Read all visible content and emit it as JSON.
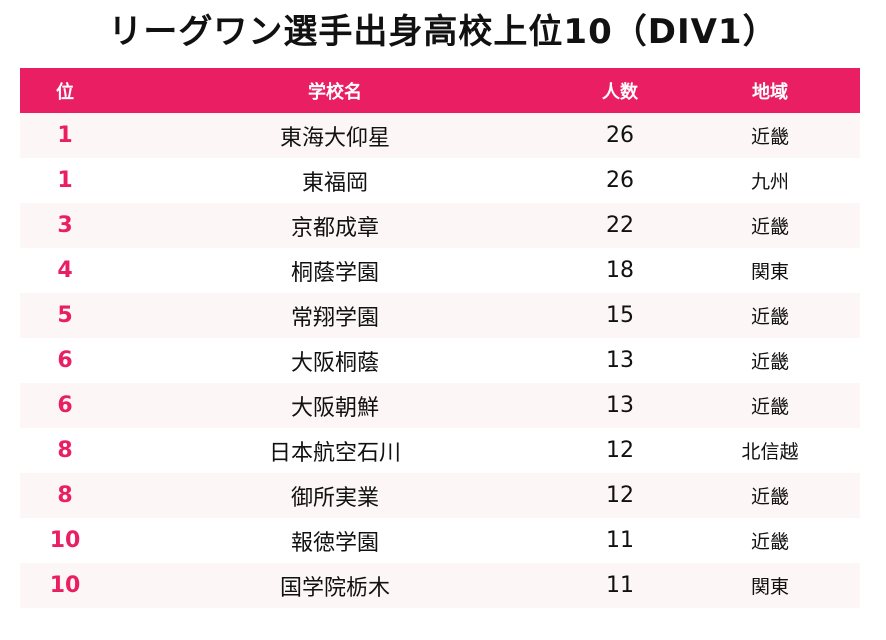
{
  "title": "リーグワン選手出身高校上位10（DIV1）",
  "colors": {
    "header_bg": "#e91e63",
    "rank_text": "#e91e63",
    "stripe": "#fdf6f7"
  },
  "table": {
    "headers": [
      "位",
      "学校名",
      "人数",
      "地域"
    ],
    "rows": [
      {
        "rank": "1",
        "school": "東海大仰星",
        "count": "26",
        "region": "近畿"
      },
      {
        "rank": "1",
        "school": "東福岡",
        "count": "26",
        "region": "九州"
      },
      {
        "rank": "3",
        "school": "京都成章",
        "count": "22",
        "region": "近畿"
      },
      {
        "rank": "4",
        "school": "桐蔭学園",
        "count": "18",
        "region": "関東"
      },
      {
        "rank": "5",
        "school": "常翔学園",
        "count": "15",
        "region": "近畿"
      },
      {
        "rank": "6",
        "school": "大阪桐蔭",
        "count": "13",
        "region": "近畿"
      },
      {
        "rank": "6",
        "school": "大阪朝鮮",
        "count": "13",
        "region": "近畿"
      },
      {
        "rank": "8",
        "school": "日本航空石川",
        "count": "12",
        "region": "北信越"
      },
      {
        "rank": "8",
        "school": "御所実業",
        "count": "12",
        "region": "近畿"
      },
      {
        "rank": "10",
        "school": "報徳学園",
        "count": "11",
        "region": "近畿"
      },
      {
        "rank": "10",
        "school": "国学院栃木",
        "count": "11",
        "region": "関東"
      }
    ]
  }
}
